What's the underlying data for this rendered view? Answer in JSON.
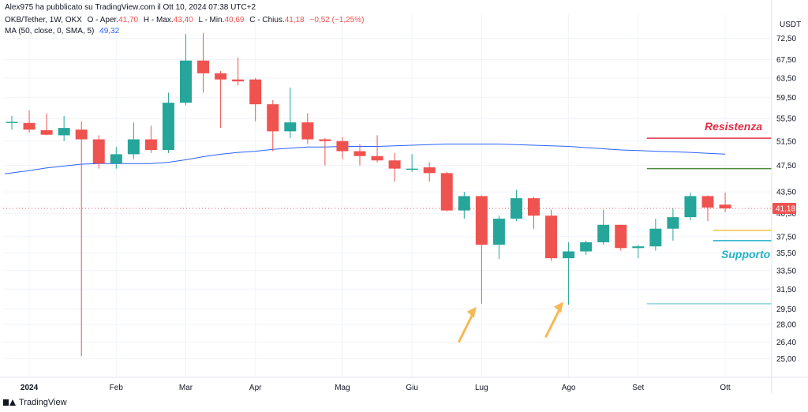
{
  "header": {
    "published": "Alex975 ha pubblicato su TradingView.com il Ott 10, 2024 07:38 UTC+2",
    "symbol": "OKB/Tether, 1W, OKX",
    "open_label": "O - Aper.",
    "open_value": "41,70",
    "high_label": "H - Max.",
    "high_value": "43,40",
    "low_label": "L - Min.",
    "low_value": "40,69",
    "close_label": "C - Chius.",
    "close_value": "41,18",
    "change_value": "−0,52 (−1,25%)",
    "ma_label": "MA (50, close, 0, SMA, 5)",
    "ma_value": "49,32"
  },
  "footer": {
    "brand": "TradingView"
  },
  "chart_data": {
    "type": "candlestick",
    "currency": "USDT",
    "y_scale": "log",
    "ylim": [
      23.5,
      78.5
    ],
    "y_ticks": [
      25.0,
      26.4,
      28.0,
      29.5,
      31.5,
      33.5,
      35.5,
      37.5,
      40.5,
      43.5,
      47.5,
      51.5,
      55.5,
      59.5,
      63.5,
      67.5,
      72.5
    ],
    "y_tick_labels": [
      "25,00",
      "26,40",
      "28,00",
      "29,50",
      "31,50",
      "33,50",
      "35,50",
      "37,50",
      "40,50",
      "43,50",
      "47,50",
      "51,50",
      "55,50",
      "59,50",
      "63,50",
      "67,50",
      "72,50"
    ],
    "x_ticks": [
      {
        "label": "2024",
        "index": 1
      },
      {
        "label": "Feb",
        "index": 6
      },
      {
        "label": "Mar",
        "index": 10
      },
      {
        "label": "Apr",
        "index": 14
      },
      {
        "label": "Mag",
        "index": 19
      },
      {
        "label": "Giu",
        "index": 23
      },
      {
        "label": "Lug",
        "index": 27
      },
      {
        "label": "Ago",
        "index": 32
      },
      {
        "label": "Set",
        "index": 36
      },
      {
        "label": "Ott",
        "index": 41
      }
    ],
    "candles": [
      {
        "o": 54.8,
        "h": 56.0,
        "l": 53.5,
        "c": 54.9
      },
      {
        "o": 54.7,
        "h": 57.0,
        "l": 53.0,
        "c": 53.5
      },
      {
        "o": 53.4,
        "h": 56.5,
        "l": 52.5,
        "c": 52.6
      },
      {
        "o": 52.5,
        "h": 56.0,
        "l": 51.5,
        "c": 53.8
      },
      {
        "o": 53.5,
        "h": 55.0,
        "l": 25.2,
        "c": 51.8
      },
      {
        "o": 51.8,
        "h": 52.5,
        "l": 47.0,
        "c": 47.8
      },
      {
        "o": 47.8,
        "h": 50.5,
        "l": 47.0,
        "c": 49.3
      },
      {
        "o": 49.3,
        "h": 54.8,
        "l": 48.5,
        "c": 51.8
      },
      {
        "o": 51.8,
        "h": 54.2,
        "l": 49.5,
        "c": 50.0
      },
      {
        "o": 50.0,
        "h": 60.5,
        "l": 49.5,
        "c": 58.5
      },
      {
        "o": 58.5,
        "h": 73.5,
        "l": 58.0,
        "c": 67.3
      },
      {
        "o": 67.3,
        "h": 73.8,
        "l": 60.5,
        "c": 64.5
      },
      {
        "o": 64.5,
        "h": 65.0,
        "l": 53.8,
        "c": 63.2
      },
      {
        "o": 63.2,
        "h": 68.0,
        "l": 62.0,
        "c": 62.8
      },
      {
        "o": 63.2,
        "h": 63.5,
        "l": 55.0,
        "c": 58.2
      },
      {
        "o": 58.2,
        "h": 59.0,
        "l": 49.8,
        "c": 53.2
      },
      {
        "o": 53.2,
        "h": 61.5,
        "l": 52.0,
        "c": 54.8
      },
      {
        "o": 54.8,
        "h": 56.5,
        "l": 51.0,
        "c": 51.8
      },
      {
        "o": 51.8,
        "h": 52.0,
        "l": 47.5,
        "c": 51.5
      },
      {
        "o": 51.5,
        "h": 52.2,
        "l": 48.5,
        "c": 49.8
      },
      {
        "o": 49.8,
        "h": 51.0,
        "l": 47.5,
        "c": 49.0
      },
      {
        "o": 49.0,
        "h": 52.5,
        "l": 48.0,
        "c": 48.3
      },
      {
        "o": 48.3,
        "h": 49.5,
        "l": 45.0,
        "c": 47.0
      },
      {
        "o": 47.0,
        "h": 49.3,
        "l": 46.5,
        "c": 47.0
      },
      {
        "o": 47.2,
        "h": 48.0,
        "l": 45.0,
        "c": 46.3
      },
      {
        "o": 46.3,
        "h": 46.5,
        "l": 40.8,
        "c": 40.9
      },
      {
        "o": 40.9,
        "h": 43.5,
        "l": 39.8,
        "c": 42.9
      },
      {
        "o": 42.9,
        "h": 43.0,
        "l": 30.0,
        "c": 36.5
      },
      {
        "o": 36.5,
        "h": 40.2,
        "l": 34.8,
        "c": 39.8
      },
      {
        "o": 39.8,
        "h": 43.8,
        "l": 39.5,
        "c": 42.6
      },
      {
        "o": 42.6,
        "h": 42.8,
        "l": 38.5,
        "c": 40.2
      },
      {
        "o": 40.2,
        "h": 41.0,
        "l": 34.6,
        "c": 34.9
      },
      {
        "o": 34.9,
        "h": 36.8,
        "l": 29.9,
        "c": 35.7
      },
      {
        "o": 35.7,
        "h": 37.0,
        "l": 35.3,
        "c": 36.8
      },
      {
        "o": 36.8,
        "h": 41.0,
        "l": 36.5,
        "c": 39.0
      },
      {
        "o": 39.0,
        "h": 39.0,
        "l": 35.8,
        "c": 36.1
      },
      {
        "o": 36.1,
        "h": 36.5,
        "l": 34.9,
        "c": 36.3
      },
      {
        "o": 36.3,
        "h": 39.8,
        "l": 35.8,
        "c": 38.5
      },
      {
        "o": 38.5,
        "h": 41.2,
        "l": 37.0,
        "c": 40.0
      },
      {
        "o": 40.0,
        "h": 43.4,
        "l": 39.6,
        "c": 42.9
      },
      {
        "o": 42.9,
        "h": 43.0,
        "l": 39.5,
        "c": 41.3
      },
      {
        "o": 41.7,
        "h": 43.4,
        "l": 40.69,
        "c": 41.18
      }
    ],
    "ma": [
      46.2,
      46.7,
      47.1,
      47.4,
      47.7,
      47.8,
      47.8,
      47.8,
      47.8,
      48.0,
      48.4,
      48.9,
      49.3,
      49.6,
      49.8,
      50.1,
      50.3,
      50.5,
      50.5,
      50.6,
      50.6,
      50.6,
      50.7,
      50.8,
      50.9,
      51.0,
      51.0,
      51.0,
      51.0,
      50.9,
      50.8,
      50.7,
      50.6,
      50.4,
      50.2,
      50.0,
      49.9,
      49.8,
      49.7,
      49.6,
      49.45,
      49.32
    ],
    "price_label": "41,18",
    "current_price": 41.18,
    "levels": [
      {
        "value": 52.0,
        "color": "#e03046",
        "from_index": 36.5,
        "label": "Resistenza"
      },
      {
        "value": 47.0,
        "color": "#4c8c3a",
        "from_index": 36.5
      },
      {
        "value": 38.3,
        "color": "#f5c242",
        "from_index": 40.3
      },
      {
        "value": 37.0,
        "color": "#22b0c6",
        "from_index": 40.3,
        "label": "Supporto"
      },
      {
        "value": 30.0,
        "color": "#8fd3dc",
        "from_index": 36.5
      }
    ],
    "arrows": [
      {
        "index": 26.7,
        "tip": 29.7
      },
      {
        "index": 31.7,
        "tip": 30.2
      }
    ],
    "colors": {
      "up": "#26a69a",
      "down": "#ef5350",
      "ma": "#2962ff",
      "arrow": "#f7b955",
      "grid": "#f0f3fa"
    }
  }
}
